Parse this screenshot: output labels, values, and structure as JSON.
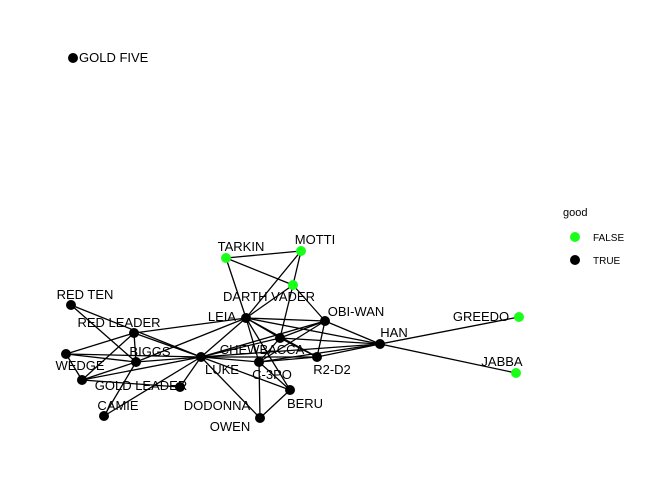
{
  "graph": {
    "colors": {
      "good_true": "#000000",
      "good_false": "#1aff1a",
      "edge": "#000000",
      "background": "#ffffff"
    },
    "nodes": [
      {
        "id": "GOLD FIVE",
        "good": true
      },
      {
        "id": "TARKIN",
        "good": false
      },
      {
        "id": "MOTTI",
        "good": false
      },
      {
        "id": "DARTH VADER",
        "good": false
      },
      {
        "id": "RED TEN",
        "good": true
      },
      {
        "id": "RED LEADER",
        "good": true
      },
      {
        "id": "LEIA",
        "good": true
      },
      {
        "id": "OBI-WAN",
        "good": true
      },
      {
        "id": "GREEDO",
        "good": false
      },
      {
        "id": "HAN",
        "good": true
      },
      {
        "id": "BIGGS",
        "good": true
      },
      {
        "id": "CHEWBACCA",
        "good": true
      },
      {
        "id": "WEDGE",
        "good": true
      },
      {
        "id": "LUKE",
        "good": true
      },
      {
        "id": "C-3PO",
        "good": true
      },
      {
        "id": "R2-D2",
        "good": true
      },
      {
        "id": "JABBA",
        "good": false
      },
      {
        "id": "GOLD LEADER",
        "good": true
      },
      {
        "id": "CAMIE",
        "good": true
      },
      {
        "id": "DODONNA",
        "good": true
      },
      {
        "id": "BERU",
        "good": true
      },
      {
        "id": "OWEN",
        "good": true
      }
    ],
    "edges": [
      [
        "TARKIN",
        "MOTTI"
      ],
      [
        "TARKIN",
        "DARTH VADER"
      ],
      [
        "TARKIN",
        "LEIA"
      ],
      [
        "MOTTI",
        "DARTH VADER"
      ],
      [
        "MOTTI",
        "LEIA"
      ],
      [
        "DARTH VADER",
        "OBI-WAN"
      ],
      [
        "DARTH VADER",
        "LEIA"
      ],
      [
        "DARTH VADER",
        "CHEWBACCA"
      ],
      [
        "RED TEN",
        "LUKE"
      ],
      [
        "RED TEN",
        "BIGGS"
      ],
      [
        "RED LEADER",
        "LEIA"
      ],
      [
        "RED LEADER",
        "LUKE"
      ],
      [
        "RED LEADER",
        "BIGGS"
      ],
      [
        "RED LEADER",
        "WEDGE"
      ],
      [
        "RED LEADER",
        "GOLD LEADER"
      ],
      [
        "LEIA",
        "OBI-WAN"
      ],
      [
        "LEIA",
        "HAN"
      ],
      [
        "LEIA",
        "CHEWBACCA"
      ],
      [
        "LEIA",
        "LUKE"
      ],
      [
        "LEIA",
        "C-3PO"
      ],
      [
        "LEIA",
        "R2-D2"
      ],
      [
        "LEIA",
        "BIGGS"
      ],
      [
        "LEIA",
        "BERU"
      ],
      [
        "OBI-WAN",
        "HAN"
      ],
      [
        "OBI-WAN",
        "CHEWBACCA"
      ],
      [
        "OBI-WAN",
        "LUKE"
      ],
      [
        "OBI-WAN",
        "C-3PO"
      ],
      [
        "OBI-WAN",
        "R2-D2"
      ],
      [
        "GREEDO",
        "HAN"
      ],
      [
        "HAN",
        "JABBA"
      ],
      [
        "HAN",
        "CHEWBACCA"
      ],
      [
        "HAN",
        "LUKE"
      ],
      [
        "HAN",
        "C-3PO"
      ],
      [
        "HAN",
        "R2-D2"
      ],
      [
        "BIGGS",
        "LUKE"
      ],
      [
        "BIGGS",
        "WEDGE"
      ],
      [
        "BIGGS",
        "GOLD LEADER"
      ],
      [
        "BIGGS",
        "CAMIE"
      ],
      [
        "CHEWBACCA",
        "LUKE"
      ],
      [
        "CHEWBACCA",
        "C-3PO"
      ],
      [
        "CHEWBACCA",
        "R2-D2"
      ],
      [
        "WEDGE",
        "LUKE"
      ],
      [
        "WEDGE",
        "GOLD LEADER"
      ],
      [
        "LUKE",
        "C-3PO"
      ],
      [
        "LUKE",
        "R2-D2"
      ],
      [
        "LUKE",
        "GOLD LEADER"
      ],
      [
        "LUKE",
        "CAMIE"
      ],
      [
        "LUKE",
        "DODONNA"
      ],
      [
        "LUKE",
        "BERU"
      ],
      [
        "LUKE",
        "OWEN"
      ],
      [
        "C-3PO",
        "R2-D2"
      ],
      [
        "C-3PO",
        "BERU"
      ],
      [
        "C-3PO",
        "OWEN"
      ],
      [
        "GOLD LEADER",
        "DODONNA"
      ],
      [
        "BERU",
        "OWEN"
      ]
    ]
  },
  "legend": {
    "title": "good",
    "items": [
      {
        "label": "FALSE",
        "color": "#1aff1a"
      },
      {
        "label": "TRUE",
        "color": "#000000"
      }
    ]
  }
}
